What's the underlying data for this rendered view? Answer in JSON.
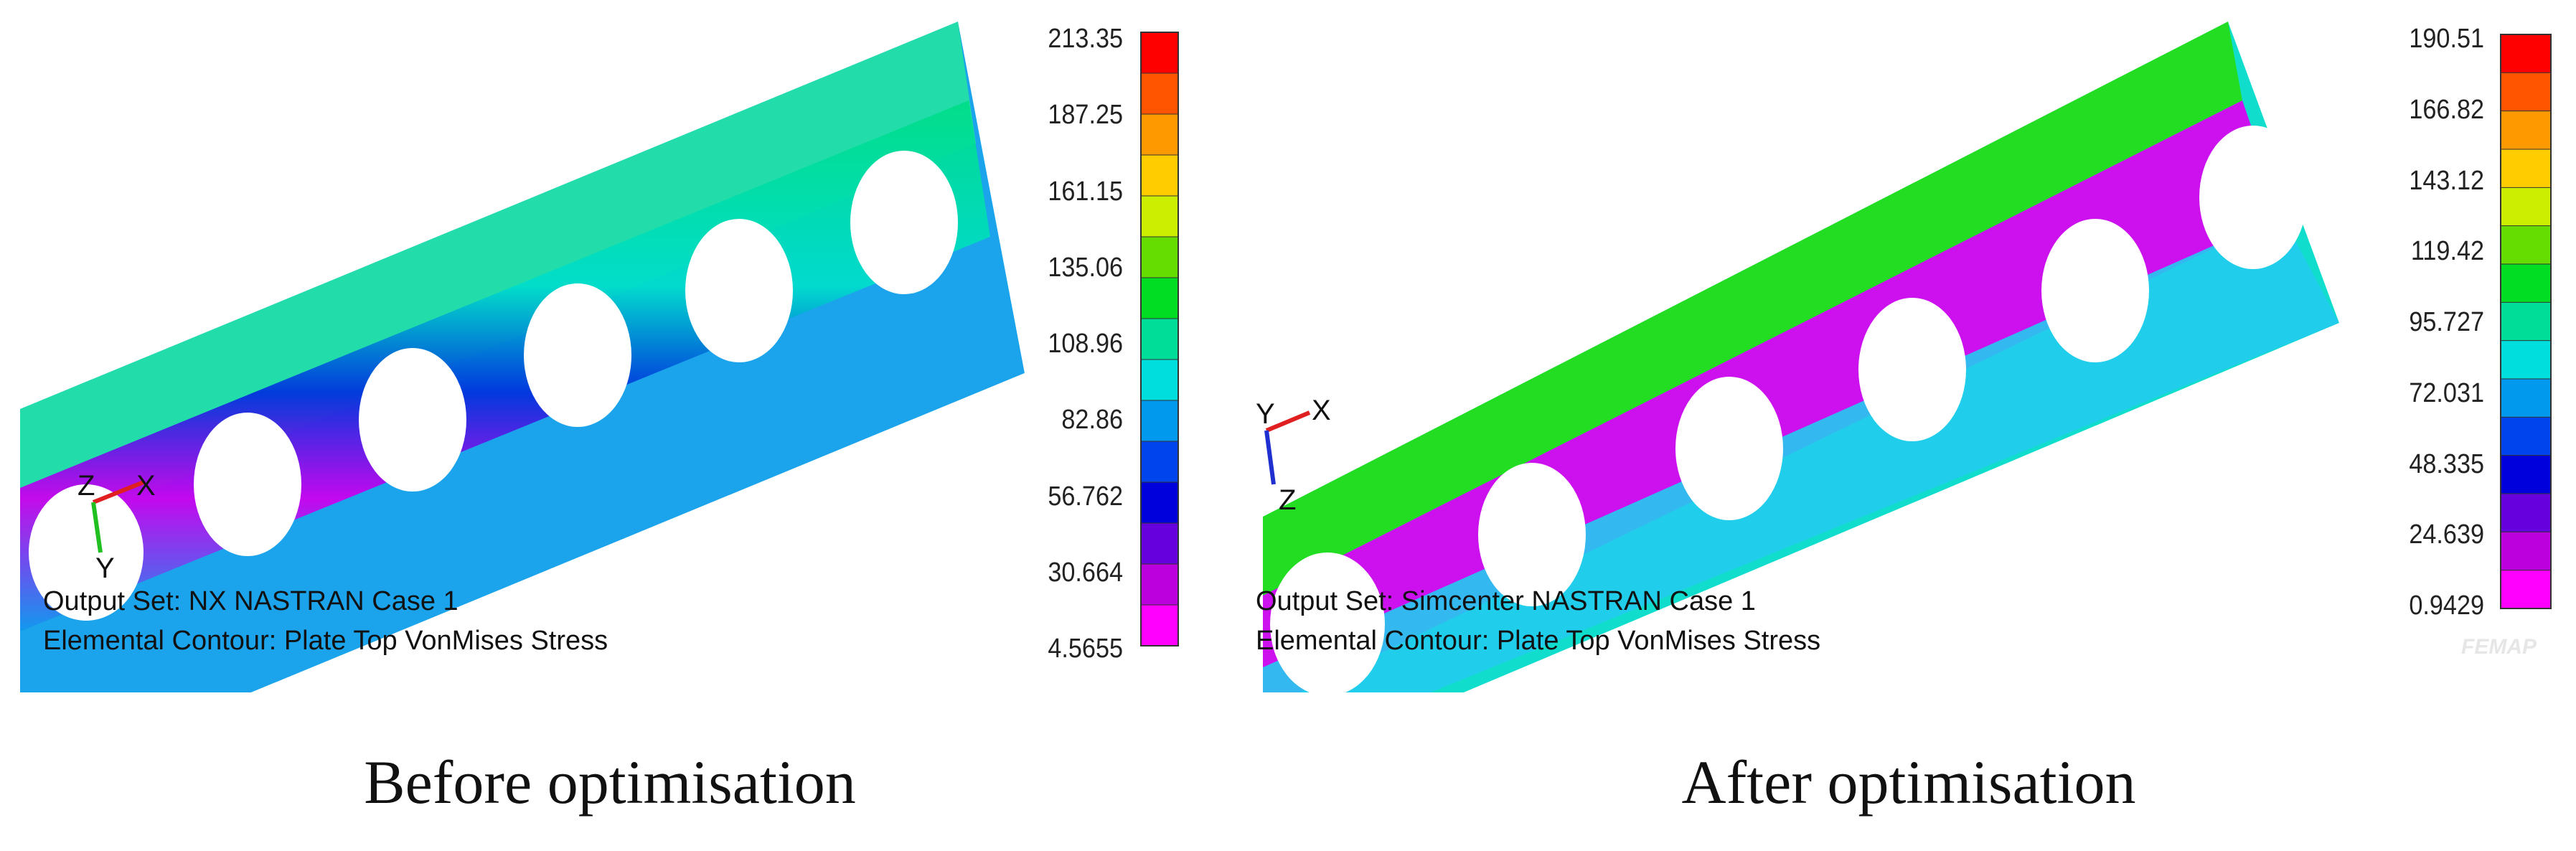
{
  "panels": [
    {
      "legend_values": [
        "213.35",
        "187.25",
        "161.15",
        "135.06",
        "108.96",
        "82.86",
        "56.762",
        "30.664",
        "4.5655"
      ],
      "axis_labels": {
        "first": "Z",
        "second": "X",
        "third": "Y"
      },
      "output_set": "Output Set: NX NASTRAN Case 1",
      "contour": "Elemental Contour: Plate Top VonMises Stress",
      "caption": "Before optimisation"
    },
    {
      "legend_values": [
        "190.51",
        "166.82",
        "143.12",
        "119.42",
        "95.727",
        "72.031",
        "48.335",
        "24.639",
        "0.9429"
      ],
      "axis_labels": {
        "first": "Y",
        "second": "X",
        "third": "Z"
      },
      "output_set": "Output Set: Simcenter NASTRAN Case 1",
      "contour": "Elemental Contour: Plate Top VonMises Stress",
      "caption": "After optimisation",
      "logo": "FEMAP"
    }
  ],
  "colors": {
    "scale": [
      "#ff0000",
      "#ff5500",
      "#ff9900",
      "#ffcc00",
      "#ccee00",
      "#66dd00",
      "#00dd22",
      "#00dd99",
      "#00dddd",
      "#0099ee",
      "#0044ee",
      "#0000dd",
      "#6600dd",
      "#bb00dd",
      "#ff00ff"
    ],
    "hole": "#ffffff"
  }
}
